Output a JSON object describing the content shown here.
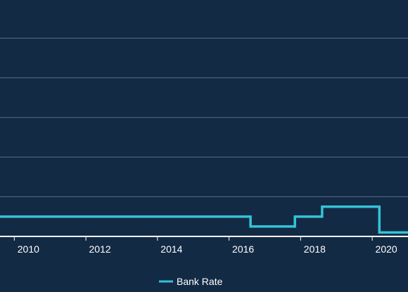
{
  "chart_data": {
    "type": "line",
    "step": true,
    "title": "",
    "xlabel": "",
    "ylabel": "",
    "xlim": [
      2009.6,
      2021.0
    ],
    "ylim": [
      0,
      5.75
    ],
    "x_ticks": [
      2010,
      2012,
      2014,
      2016,
      2018,
      2020
    ],
    "x_tick_labels": [
      "2010",
      "2012",
      "2014",
      "2016",
      "2018",
      "2020"
    ],
    "gridlines_y": [
      1,
      2,
      3,
      4,
      5
    ],
    "grid": true,
    "legend": {
      "position": "bottom-center"
    },
    "series": [
      {
        "name": "Bank Rate",
        "color": "#35c3d6",
        "x": [
          2009.6,
          2016.6,
          2017.84,
          2018.6,
          2020.2,
          2021.0
        ],
        "y": [
          0.5,
          0.25,
          0.5,
          0.75,
          0.1,
          0.1
        ]
      }
    ]
  }
}
